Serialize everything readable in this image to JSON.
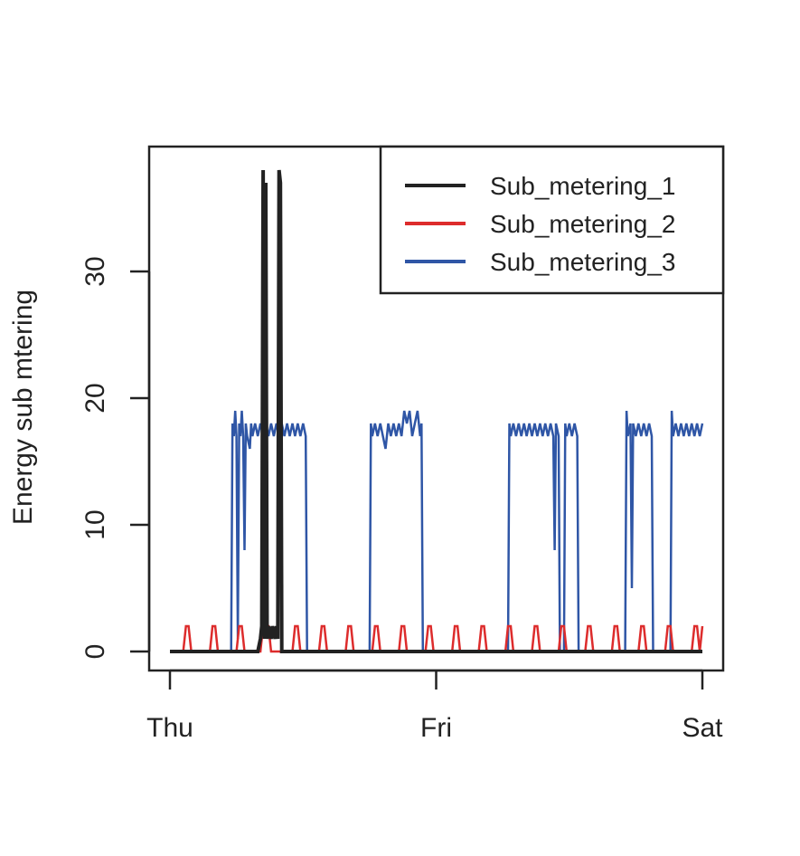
{
  "chart_data": {
    "type": "line",
    "title": "",
    "xlabel": "",
    "ylabel": "Energy sub mtering",
    "x_ticks": [
      "Thu",
      "Fri",
      "Sat"
    ],
    "y_ticks": [
      0,
      10,
      20,
      30
    ],
    "xlim": [
      0,
      2
    ],
    "ylim": [
      0,
      38
    ],
    "grid": false,
    "legend_position": "top-right",
    "series": [
      {
        "name": "Sub_metering_1",
        "color": "#222222",
        "points": [
          [
            0,
            0
          ],
          [
            0.33,
            0
          ],
          [
            0.34,
            1
          ],
          [
            0.345,
            2
          ],
          [
            0.35,
            38
          ],
          [
            0.355,
            1
          ],
          [
            0.36,
            37
          ],
          [
            0.365,
            1
          ],
          [
            0.37,
            2
          ],
          [
            0.38,
            1
          ],
          [
            0.385,
            2
          ],
          [
            0.395,
            1
          ],
          [
            0.4,
            2
          ],
          [
            0.405,
            1
          ],
          [
            0.41,
            38
          ],
          [
            0.415,
            37
          ],
          [
            0.42,
            0
          ],
          [
            2,
            0
          ]
        ]
      },
      {
        "name": "Sub_metering_2",
        "color": "#dd2c2c",
        "points": [
          [
            0,
            0
          ],
          [
            0.05,
            0
          ],
          [
            0.06,
            2
          ],
          [
            0.07,
            2
          ],
          [
            0.08,
            0
          ],
          [
            0.15,
            0
          ],
          [
            0.16,
            2
          ],
          [
            0.17,
            2
          ],
          [
            0.18,
            0
          ],
          [
            0.25,
            0
          ],
          [
            0.26,
            2
          ],
          [
            0.27,
            2
          ],
          [
            0.28,
            0
          ],
          [
            0.34,
            0
          ],
          [
            0.35,
            2
          ],
          [
            0.37,
            2
          ],
          [
            0.38,
            0
          ],
          [
            0.46,
            0
          ],
          [
            0.47,
            2
          ],
          [
            0.48,
            2
          ],
          [
            0.49,
            0
          ],
          [
            0.56,
            0
          ],
          [
            0.57,
            2
          ],
          [
            0.58,
            2
          ],
          [
            0.59,
            0
          ],
          [
            0.66,
            0
          ],
          [
            0.67,
            2
          ],
          [
            0.68,
            2
          ],
          [
            0.69,
            0
          ],
          [
            0.76,
            0
          ],
          [
            0.77,
            2
          ],
          [
            0.78,
            2
          ],
          [
            0.79,
            0
          ],
          [
            0.86,
            0
          ],
          [
            0.87,
            2
          ],
          [
            0.88,
            2
          ],
          [
            0.89,
            0
          ],
          [
            0.96,
            0
          ],
          [
            0.97,
            2
          ],
          [
            0.98,
            2
          ],
          [
            0.99,
            0
          ],
          [
            1.06,
            0
          ],
          [
            1.07,
            2
          ],
          [
            1.08,
            2
          ],
          [
            1.09,
            0
          ],
          [
            1.16,
            0
          ],
          [
            1.17,
            2
          ],
          [
            1.18,
            2
          ],
          [
            1.19,
            0
          ],
          [
            1.26,
            0
          ],
          [
            1.27,
            2
          ],
          [
            1.28,
            2
          ],
          [
            1.29,
            0
          ],
          [
            1.36,
            0
          ],
          [
            1.37,
            2
          ],
          [
            1.38,
            2
          ],
          [
            1.39,
            0
          ],
          [
            1.46,
            0
          ],
          [
            1.47,
            2
          ],
          [
            1.48,
            2
          ],
          [
            1.49,
            0
          ],
          [
            1.56,
            0
          ],
          [
            1.57,
            2
          ],
          [
            1.58,
            2
          ],
          [
            1.59,
            0
          ],
          [
            1.66,
            0
          ],
          [
            1.67,
            2
          ],
          [
            1.68,
            2
          ],
          [
            1.69,
            0
          ],
          [
            1.76,
            0
          ],
          [
            1.77,
            2
          ],
          [
            1.78,
            2
          ],
          [
            1.79,
            0
          ],
          [
            1.86,
            0
          ],
          [
            1.87,
            2
          ],
          [
            1.88,
            2
          ],
          [
            1.89,
            0
          ],
          [
            1.96,
            0
          ],
          [
            1.97,
            2
          ],
          [
            1.98,
            2
          ],
          [
            1.99,
            0
          ],
          [
            2,
            2
          ]
        ]
      },
      {
        "name": "Sub_metering_3",
        "color": "#2f56a6",
        "points": [
          [
            0,
            0
          ],
          [
            0.23,
            0
          ],
          [
            0.235,
            18
          ],
          [
            0.24,
            17
          ],
          [
            0.245,
            19
          ],
          [
            0.25,
            17
          ],
          [
            0.255,
            1
          ],
          [
            0.26,
            18
          ],
          [
            0.265,
            17
          ],
          [
            0.27,
            19
          ],
          [
            0.275,
            17
          ],
          [
            0.28,
            8
          ],
          [
            0.285,
            18
          ],
          [
            0.29,
            17
          ],
          [
            0.3,
            16
          ],
          [
            0.305,
            18
          ],
          [
            0.31,
            17
          ],
          [
            0.32,
            18
          ],
          [
            0.33,
            17
          ],
          [
            0.34,
            18
          ],
          [
            0.35,
            17
          ],
          [
            0.36,
            18
          ],
          [
            0.37,
            17
          ],
          [
            0.38,
            18
          ],
          [
            0.39,
            17
          ],
          [
            0.4,
            18
          ],
          [
            0.41,
            17
          ],
          [
            0.42,
            18
          ],
          [
            0.43,
            17
          ],
          [
            0.44,
            18
          ],
          [
            0.45,
            17
          ],
          [
            0.46,
            18
          ],
          [
            0.47,
            17
          ],
          [
            0.48,
            18
          ],
          [
            0.49,
            17
          ],
          [
            0.5,
            18
          ],
          [
            0.51,
            17
          ],
          [
            0.515,
            0
          ],
          [
            0.75,
            0
          ],
          [
            0.755,
            18
          ],
          [
            0.76,
            17
          ],
          [
            0.77,
            18
          ],
          [
            0.78,
            17
          ],
          [
            0.79,
            18
          ],
          [
            0.8,
            17
          ],
          [
            0.81,
            16
          ],
          [
            0.82,
            18
          ],
          [
            0.83,
            17
          ],
          [
            0.84,
            18
          ],
          [
            0.85,
            17
          ],
          [
            0.86,
            18
          ],
          [
            0.87,
            17
          ],
          [
            0.88,
            19
          ],
          [
            0.89,
            18
          ],
          [
            0.9,
            19
          ],
          [
            0.91,
            17
          ],
          [
            0.92,
            18
          ],
          [
            0.93,
            19
          ],
          [
            0.94,
            17
          ],
          [
            0.945,
            18
          ],
          [
            0.95,
            0
          ],
          [
            0.96,
            0
          ],
          [
            1.27,
            0
          ],
          [
            1.275,
            18
          ],
          [
            1.28,
            17
          ],
          [
            1.29,
            18
          ],
          [
            1.3,
            17
          ],
          [
            1.31,
            18
          ],
          [
            1.32,
            17
          ],
          [
            1.33,
            18
          ],
          [
            1.34,
            17
          ],
          [
            1.35,
            18
          ],
          [
            1.36,
            17
          ],
          [
            1.37,
            18
          ],
          [
            1.38,
            17
          ],
          [
            1.39,
            18
          ],
          [
            1.4,
            17
          ],
          [
            1.41,
            18
          ],
          [
            1.42,
            17
          ],
          [
            1.43,
            18
          ],
          [
            1.44,
            17
          ],
          [
            1.445,
            8
          ],
          [
            1.45,
            18
          ],
          [
            1.46,
            17
          ],
          [
            1.465,
            0
          ],
          [
            1.48,
            0
          ],
          [
            1.485,
            18
          ],
          [
            1.49,
            17
          ],
          [
            1.5,
            18
          ],
          [
            1.51,
            17
          ],
          [
            1.52,
            18
          ],
          [
            1.53,
            17
          ],
          [
            1.535,
            0
          ],
          [
            1.71,
            0
          ],
          [
            1.715,
            19
          ],
          [
            1.72,
            17
          ],
          [
            1.73,
            18
          ],
          [
            1.735,
            5
          ],
          [
            1.74,
            18
          ],
          [
            1.75,
            17
          ],
          [
            1.76,
            18
          ],
          [
            1.77,
            17
          ],
          [
            1.78,
            18
          ],
          [
            1.79,
            17
          ],
          [
            1.8,
            18
          ],
          [
            1.81,
            17
          ],
          [
            1.815,
            0
          ],
          [
            1.88,
            0
          ],
          [
            1.885,
            19
          ],
          [
            1.89,
            17
          ],
          [
            1.9,
            18
          ],
          [
            1.91,
            17
          ],
          [
            1.92,
            18
          ],
          [
            1.93,
            17
          ],
          [
            1.94,
            18
          ],
          [
            1.95,
            17
          ],
          [
            1.96,
            18
          ],
          [
            1.97,
            17
          ],
          [
            1.98,
            18
          ],
          [
            1.99,
            17
          ],
          [
            2,
            18
          ]
        ]
      }
    ]
  }
}
